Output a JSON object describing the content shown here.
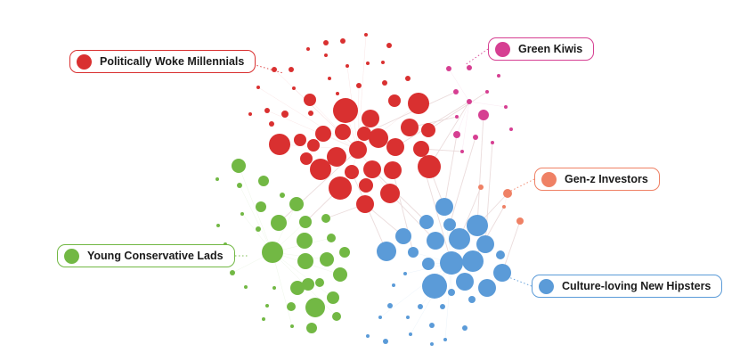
{
  "clusters": [
    {
      "id": "woke",
      "label": "Politically Woke Millennials",
      "color": "#d93030"
    },
    {
      "id": "kiwis",
      "label": "Green Kiwis",
      "color": "#d63f92"
    },
    {
      "id": "genz",
      "label": "Gen-z Investors",
      "color": "#ef8165"
    },
    {
      "id": "conservative",
      "label": "Young Conservative Lads",
      "color": "#72b844"
    },
    {
      "id": "hipsters",
      "label": "Culture-loving New Hipsters",
      "color": "#5b9bd8"
    }
  ],
  "edge_color": "#e8d6d6"
}
